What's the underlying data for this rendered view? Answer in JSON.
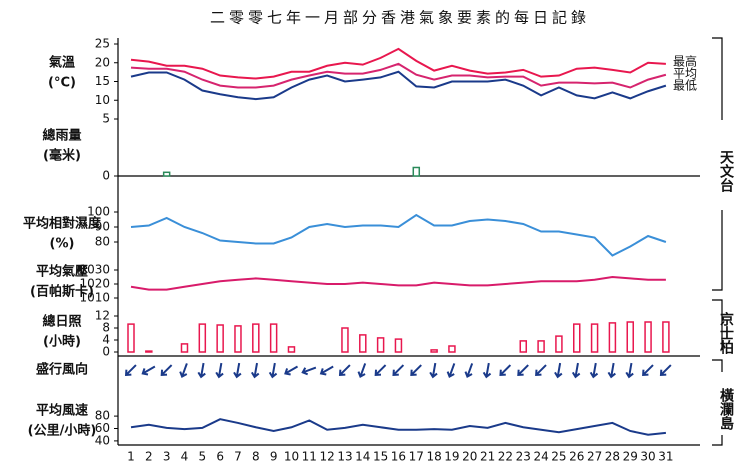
{
  "title": "二零零七年一月部分香港氣象要素的每日記錄",
  "days": [
    1,
    2,
    3,
    4,
    5,
    6,
    7,
    8,
    9,
    10,
    11,
    12,
    13,
    14,
    15,
    16,
    17,
    18,
    19,
    20,
    21,
    22,
    23,
    24,
    25,
    26,
    27,
    28,
    29,
    30,
    31
  ],
  "stations": [
    "天文台",
    "京士柏",
    "橫瀾島"
  ],
  "chart_data": [
    {
      "type": "line",
      "label": [
        "氣溫",
        "(°C)"
      ],
      "ylim": [
        5,
        25
      ],
      "yticks": [
        5,
        10,
        15,
        20,
        25
      ],
      "series": [
        {
          "name": "最高",
          "color": "#e8174e",
          "values": [
            20.8,
            20.3,
            19.2,
            19.2,
            18.4,
            16.6,
            16.1,
            15.8,
            16.3,
            17.6,
            17.6,
            19.2,
            20.0,
            19.5,
            21.3,
            23.7,
            20.5,
            17.9,
            19.2,
            17.9,
            17.1,
            17.4,
            18.1,
            16.3,
            16.6,
            18.4,
            18.7,
            18.1,
            17.4,
            20.0,
            19.7
          ]
        },
        {
          "name": "平均",
          "color": "#d6246e",
          "values": [
            18.7,
            18.4,
            18.4,
            17.6,
            15.5,
            13.9,
            13.4,
            13.4,
            13.9,
            15.5,
            16.6,
            17.6,
            17.1,
            17.1,
            18.1,
            19.7,
            16.8,
            15.5,
            16.6,
            16.6,
            16.1,
            16.3,
            16.3,
            13.9,
            14.7,
            14.7,
            14.5,
            14.7,
            13.4,
            15.5,
            16.8
          ]
        },
        {
          "name": "最低",
          "color": "#1a3a8a",
          "values": [
            16.3,
            17.4,
            17.4,
            15.5,
            12.6,
            11.6,
            10.8,
            10.3,
            10.8,
            13.4,
            15.5,
            16.6,
            15.0,
            15.5,
            16.1,
            17.6,
            13.7,
            13.4,
            15.0,
            15.0,
            15.0,
            15.5,
            13.9,
            11.3,
            13.4,
            11.3,
            10.5,
            12.1,
            10.5,
            12.4,
            13.9
          ]
        }
      ]
    },
    {
      "type": "bar",
      "label": [
        "總雨量",
        "(毫米)"
      ],
      "ylim": [
        0,
        10
      ],
      "yticks": [
        0
      ],
      "color": "#2a8a5a",
      "values": [
        0,
        0,
        1.0,
        0,
        0,
        0,
        0,
        0,
        0,
        0,
        0,
        0,
        0,
        0,
        0,
        0,
        2.3,
        0,
        0,
        0,
        0,
        0,
        0,
        0,
        0,
        0,
        0,
        0,
        0,
        0,
        0
      ]
    },
    {
      "type": "line",
      "label": [
        "平均相對濕度",
        "(%)"
      ],
      "ylim": [
        70,
        100
      ],
      "yticks": [
        80,
        90,
        100
      ],
      "series": [
        {
          "color": "#3a8fd8",
          "values": [
            90,
            91,
            96,
            90,
            86,
            81,
            80,
            79,
            79,
            83,
            90,
            92,
            90,
            91,
            91,
            90,
            98,
            91,
            91,
            94,
            95,
            94,
            92,
            87,
            87,
            85,
            83,
            71,
            77,
            84,
            80
          ]
        }
      ]
    },
    {
      "type": "line",
      "label": [
        "平均氣壓",
        "(百帕斯卡)"
      ],
      "ylim": [
        1010,
        1030
      ],
      "yticks": [
        1010,
        1020,
        1030
      ],
      "series": [
        {
          "color": "#d81b6a",
          "values": [
            1018,
            1016,
            1016,
            1018,
            1020,
            1022,
            1023,
            1024,
            1023,
            1022,
            1021,
            1020,
            1020,
            1021,
            1020,
            1019,
            1019,
            1021,
            1020,
            1019,
            1019,
            1020,
            1021,
            1022,
            1022,
            1022,
            1023,
            1025,
            1024,
            1023,
            1023
          ]
        }
      ]
    },
    {
      "type": "bar",
      "label": [
        "總日照",
        "(小時)"
      ],
      "ylim": [
        0,
        12
      ],
      "yticks": [
        0,
        4,
        8,
        12
      ],
      "color": "#e8174e",
      "values": [
        9.3,
        0.3,
        0,
        2.7,
        9.3,
        9.0,
        8.7,
        9.3,
        9.3,
        1.7,
        0,
        0,
        8.0,
        5.7,
        4.7,
        4.3,
        0,
        0.7,
        2.0,
        0,
        0,
        0,
        3.7,
        3.7,
        5.3,
        9.3,
        9.3,
        9.7,
        10.0,
        10.0,
        10.0
      ]
    },
    {
      "type": "arrow",
      "label": [
        "盛行風向"
      ],
      "color": "#1a3a8a",
      "values": [
        45,
        60,
        45,
        20,
        10,
        10,
        10,
        10,
        10,
        60,
        70,
        60,
        45,
        20,
        45,
        45,
        45,
        10,
        20,
        20,
        10,
        45,
        45,
        45,
        10,
        10,
        10,
        10,
        10,
        45,
        45
      ]
    },
    {
      "type": "line",
      "label": [
        "平均風速",
        "(公里/小時)"
      ],
      "ylim": [
        35,
        85
      ],
      "yticks": [
        40,
        60,
        80
      ],
      "series": [
        {
          "color": "#1a3a8a",
          "values": [
            62,
            66,
            61,
            59,
            61,
            75,
            69,
            62,
            56,
            62,
            73,
            58,
            61,
            66,
            62,
            58,
            58,
            59,
            58,
            64,
            61,
            69,
            62,
            58,
            54,
            59,
            64,
            69,
            56,
            50,
            53
          ]
        }
      ]
    }
  ]
}
